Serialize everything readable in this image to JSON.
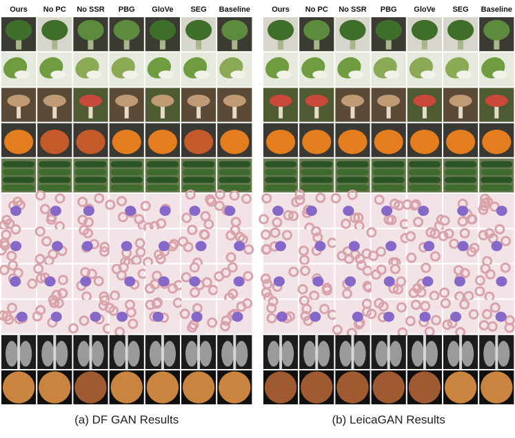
{
  "panels": [
    {
      "columns": [
        "Ours",
        "No PC",
        "No SSR",
        "PBG",
        "GloVe",
        "SEG",
        "Baseline"
      ],
      "caption": "(a) DF GAN Results"
    },
    {
      "columns": [
        "Ours",
        "No PC",
        "No SSR",
        "PBG",
        "GloVe",
        "SEG",
        "Baseline"
      ],
      "caption": "(b) LeicaGAN Results"
    }
  ]
}
